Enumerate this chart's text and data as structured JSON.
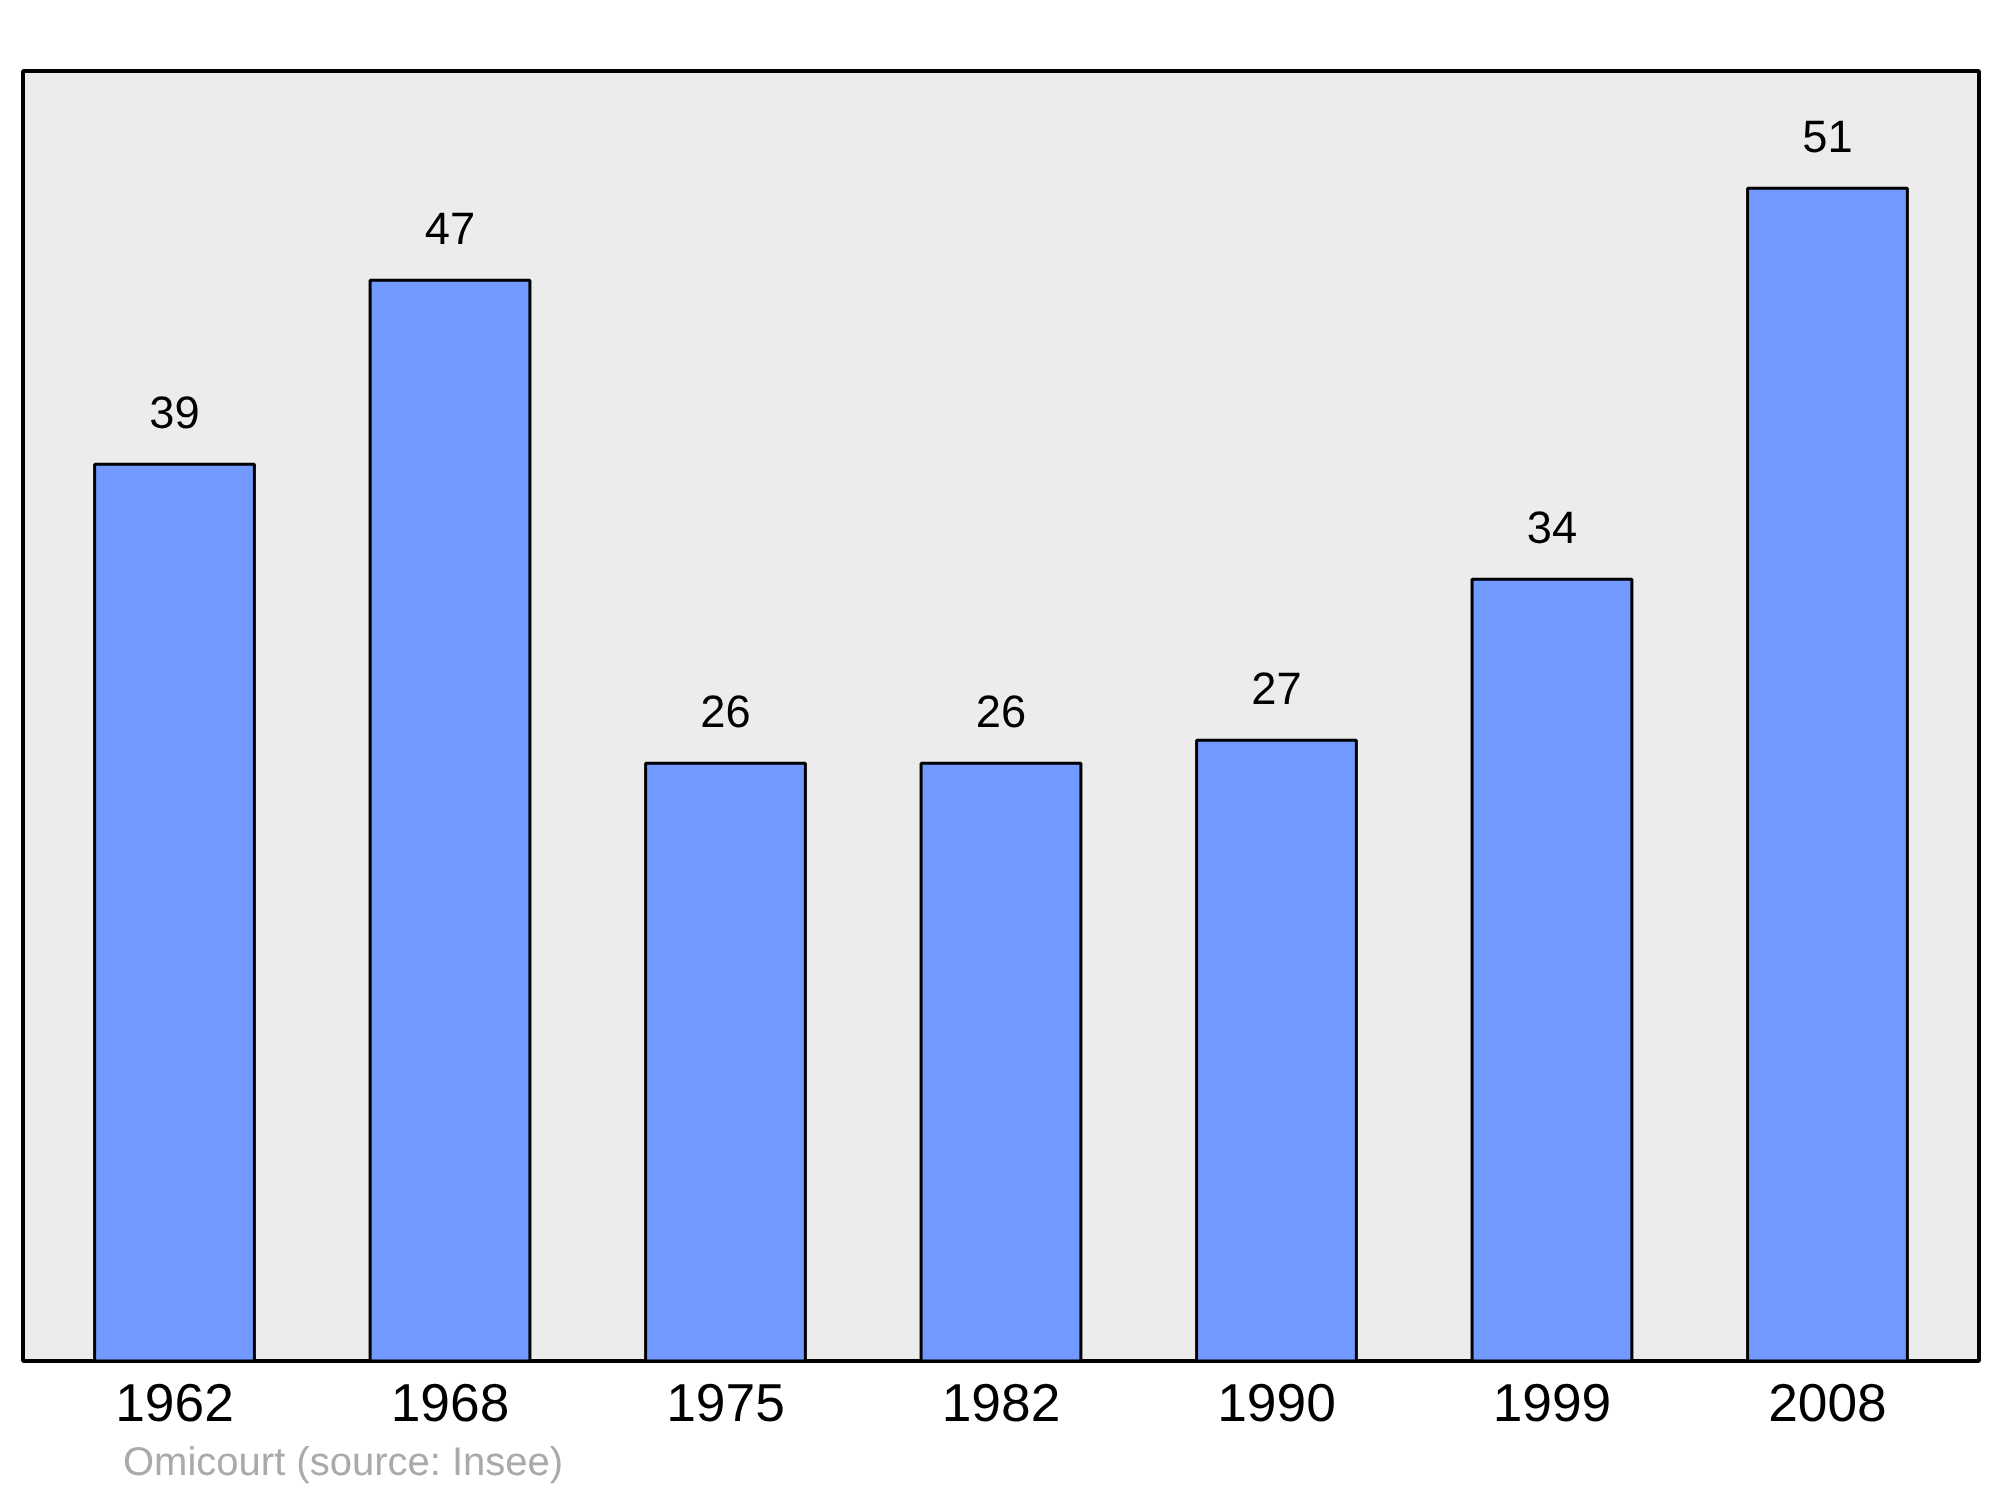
{
  "chart_data": {
    "type": "bar",
    "categories": [
      "1962",
      "1968",
      "1975",
      "1982",
      "1990",
      "1999",
      "2008"
    ],
    "values": [
      39,
      47,
      26,
      26,
      27,
      34,
      51
    ],
    "color": "#7299ff",
    "data_labels": true,
    "tick_labels": "x",
    "annotations": [
      "Omicourt    (source: Insee)"
    ]
  }
}
